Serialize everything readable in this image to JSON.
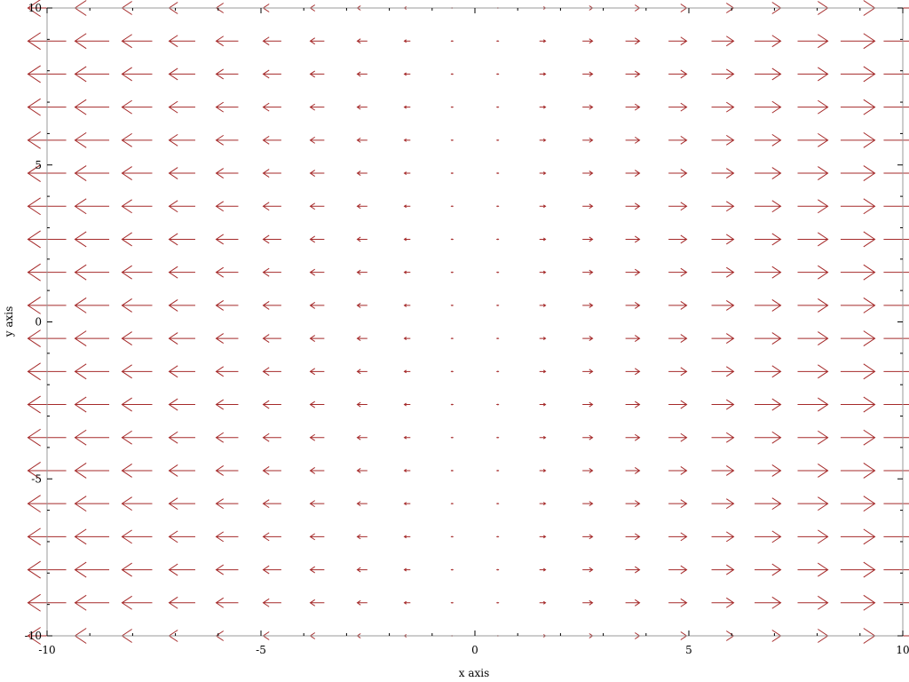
{
  "chart_data": {
    "type": "vector-field",
    "xlabel": "x axis",
    "ylabel": "y axis",
    "xlim": [
      -10,
      10
    ],
    "ylim": [
      -10,
      10
    ],
    "grid": false,
    "x_ticks": [
      -10,
      -5,
      0,
      5,
      10
    ],
    "y_ticks": [
      -10,
      -5,
      0,
      5,
      10
    ],
    "x_tick_labels": [
      "-10",
      "-5",
      "0",
      "5",
      "10"
    ],
    "y_tick_labels": [
      "-10",
      "-5",
      "0",
      "5",
      "10"
    ],
    "field": {
      "x_samples": [
        -10,
        -8.947,
        -7.895,
        -6.842,
        -5.789,
        -4.737,
        -3.684,
        -2.632,
        -1.579,
        -0.526,
        0.526,
        1.579,
        2.632,
        3.684,
        4.737,
        5.789,
        6.842,
        7.895,
        8.947,
        10
      ],
      "y_samples": [
        -10,
        -8.947,
        -7.895,
        -6.842,
        -5.789,
        -4.737,
        -3.684,
        -2.632,
        -1.579,
        -0.526,
        0.526,
        1.579,
        2.632,
        3.684,
        4.737,
        5.789,
        6.842,
        7.895,
        8.947,
        10
      ],
      "vx_equals": "x",
      "vy_equals": 0
    },
    "arrow_color": "#a52a2a",
    "axis_color": "#000000",
    "frame_color": "#999999"
  }
}
